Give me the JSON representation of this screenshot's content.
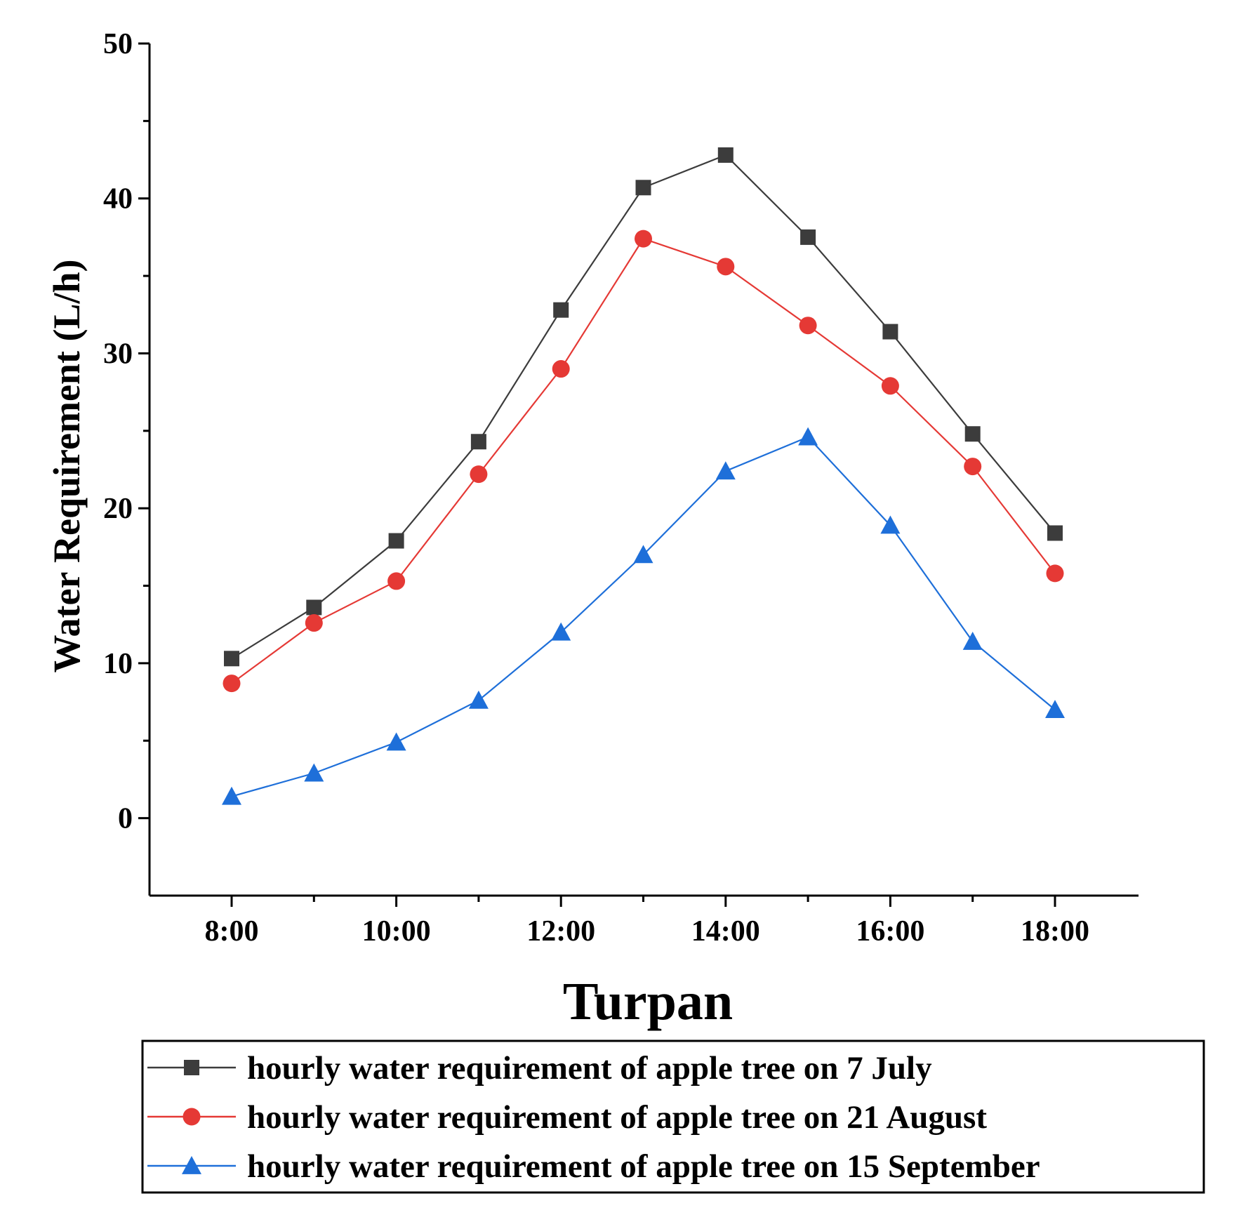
{
  "chart_data": {
    "type": "line",
    "title": "Turpan",
    "xlabel": "Turpan",
    "ylabel": "Water Requirement (L/h)",
    "x": [
      "8:00",
      "9:00",
      "10:00",
      "11:00",
      "12:00",
      "13:00",
      "14:00",
      "15:00",
      "16:00",
      "17:00",
      "18:00"
    ],
    "x_tick_labels": [
      "8:00",
      "10:00",
      "12:00",
      "14:00",
      "16:00",
      "18:00"
    ],
    "ylim": [
      -5,
      50
    ],
    "y_ticks": [
      0,
      10,
      20,
      30,
      40,
      50
    ],
    "grid": false,
    "legend_position": "bottom",
    "series": [
      {
        "name": "hourly water requirement of apple tree on 7 July",
        "marker": "square",
        "color": "#3c3c3c",
        "values": [
          10.3,
          13.6,
          17.9,
          24.3,
          32.8,
          40.7,
          42.8,
          37.5,
          31.4,
          24.8,
          18.4
        ]
      },
      {
        "name": "hourly water requirement of apple tree on 21 August",
        "marker": "circle",
        "color": "#e53935",
        "values": [
          8.7,
          12.6,
          15.3,
          22.2,
          29.0,
          37.4,
          35.6,
          31.8,
          27.9,
          22.7,
          15.8
        ]
      },
      {
        "name": "hourly water requirement of apple tree on 15 September",
        "marker": "triangle",
        "color": "#1e6fd9",
        "values": [
          1.4,
          2.9,
          4.9,
          7.6,
          12.0,
          17.0,
          22.4,
          24.6,
          18.9,
          11.4,
          7.0
        ]
      }
    ]
  }
}
